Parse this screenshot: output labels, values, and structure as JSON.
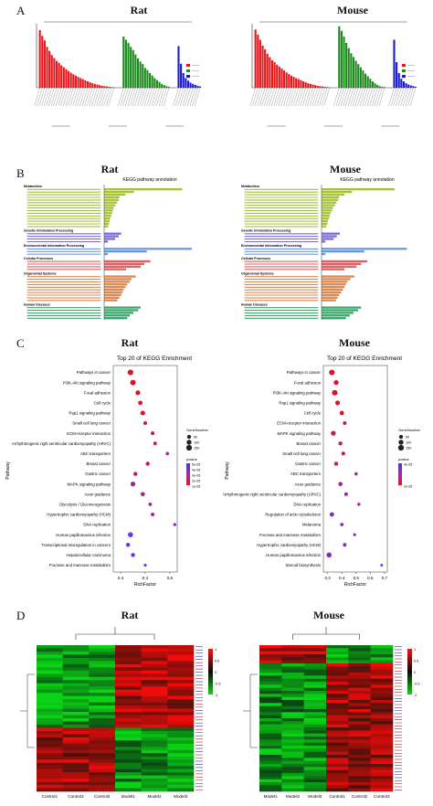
{
  "panels": {
    "A": {
      "letter": "A",
      "left_title": "Rat",
      "right_title": "Mouse"
    },
    "B": {
      "letter": "B",
      "left_title": "Rat",
      "right_title": "Mouse"
    },
    "C": {
      "letter": "C",
      "left_title": "Rat",
      "right_title": "Mouse"
    },
    "D": {
      "letter": "D",
      "left_title": "Rat",
      "right_title": "Mouse"
    }
  },
  "chart_data": [
    {
      "type": "bar",
      "id": "go-rat",
      "title": "",
      "series": [
        {
          "name": "",
          "color": "#e8161b",
          "values": [
            180,
            162,
            148,
            128,
            115,
            102,
            93,
            84,
            78,
            70,
            64,
            58,
            52,
            47,
            42,
            38,
            34,
            30,
            27,
            23,
            20,
            17,
            14,
            12,
            10,
            8,
            6,
            5,
            4,
            3,
            2,
            1
          ]
        },
        {
          "name": "",
          "color": "#1d8a1d",
          "values": [
            160,
            150,
            140,
            128,
            118,
            104,
            92,
            82,
            74,
            62,
            55,
            46,
            38,
            30,
            24,
            18,
            12,
            8,
            5,
            3
          ]
        },
        {
          "name": "",
          "color": "#1a1ad6",
          "values": [
            130,
            75,
            46,
            30,
            22,
            16,
            12,
            9,
            6,
            4
          ]
        }
      ]
    },
    {
      "type": "bar",
      "id": "go-mouse",
      "title": "",
      "series": [
        {
          "name": "",
          "color": "#e8161b",
          "values": [
            182,
            166,
            150,
            132,
            120,
            106,
            96,
            86,
            80,
            72,
            66,
            60,
            54,
            48,
            43,
            38,
            34,
            30,
            27,
            24,
            20,
            17,
            14,
            12,
            10,
            8,
            6,
            5,
            4,
            3,
            2,
            1
          ]
        },
        {
          "name": "",
          "color": "#1d8a1d",
          "values": [
            192,
            178,
            160,
            140,
            124,
            108,
            96,
            84,
            74,
            64,
            54,
            44,
            36,
            28,
            20,
            14,
            9,
            5,
            3,
            2
          ]
        },
        {
          "name": "",
          "color": "#1a1ad6",
          "values": [
            150,
            80,
            46,
            28,
            20,
            14,
            10,
            7,
            5,
            3
          ]
        }
      ]
    },
    {
      "type": "bar",
      "id": "kegg-rat",
      "title": "KEGG pathway annotation",
      "xlabel": "Number of Genes",
      "xticks": [
        "0",
        "100",
        "200",
        "300",
        "400",
        "500",
        "600"
      ],
      "groups": [
        {
          "name": "Metabolism",
          "color": "#a6c43a",
          "values": [
            640,
            245,
            175,
            125,
            120,
            105,
            92,
            78,
            72,
            65,
            58,
            50,
            45,
            40,
            32
          ]
        },
        {
          "name": "Genetic Information Processing",
          "color": "#7d6ad6",
          "values": [
            140,
            120,
            90,
            30
          ]
        },
        {
          "name": "Environmental Information Processing",
          "color": "#6b9ae0",
          "values": [
            720,
            350,
            30
          ]
        },
        {
          "name": "Cellular Processes",
          "color": "#e06060",
          "values": [
            380,
            330,
            300,
            180
          ]
        },
        {
          "name": "Organismal Systems",
          "color": "#d98a55",
          "values": [
            260,
            225,
            210,
            190,
            175,
            160,
            150,
            140,
            125,
            110
          ]
        },
        {
          "name": "Human Diseases",
          "color": "#3aa86b",
          "values": [
            300,
            280,
            240,
            210,
            190,
            150,
            130,
            110
          ]
        }
      ]
    },
    {
      "type": "bar",
      "id": "kegg-mouse",
      "title": "KEGG pathway annotation",
      "xlabel": "Number of Genes",
      "groups": [
        {
          "name": "Metabolism",
          "color": "#a6c43a",
          "values": [
            480,
            200,
            150,
            115,
            110,
            98,
            88,
            75,
            68,
            60,
            54,
            48,
            42,
            38,
            30
          ]
        },
        {
          "name": "Genetic Information Processing",
          "color": "#7d6ad6",
          "values": [
            120,
            100,
            80,
            25
          ]
        },
        {
          "name": "Environmental Information Processing",
          "color": "#6b9ae0",
          "values": [
            560,
            280,
            25
          ]
        },
        {
          "name": "Cellular Processes",
          "color": "#e06060",
          "values": [
            300,
            260,
            230,
            150
          ]
        },
        {
          "name": "Organismal Systems",
          "color": "#d98a55",
          "values": [
            215,
            190,
            170,
            160,
            150,
            140,
            130,
            115,
            105,
            95
          ]
        },
        {
          "name": "Human Diseases",
          "color": "#3aa86b",
          "values": [
            260,
            240,
            210,
            185,
            160,
            130,
            110,
            95
          ]
        }
      ]
    },
    {
      "type": "scatter",
      "id": "enrich-rat",
      "title": "Top 20 of KEGG Enrichment",
      "xlabel": "RichFactor",
      "ylabel": "Pathway",
      "xlim": [
        0.27,
        0.53
      ],
      "xticks": [
        "0.3",
        "0.4",
        "0.5"
      ],
      "legend_gene_title": "GeneNumber",
      "legend_gene_values": [
        "50",
        "100",
        "150"
      ],
      "legend_p_title": "pvalue",
      "legend_p_values": [
        "5e-05",
        "4e-05",
        "3e-05",
        "2e-05",
        "1e-05"
      ],
      "categories": [
        "Pathways in cancer",
        "PI3K-Akt signaling pathway",
        "Focal adhesion",
        "Cell cycle",
        "Rap1 signaling pathway",
        "Small cell lung cancer",
        "ECM-receptor interaction",
        "Arrhythmogenic right ventricular cardiomyopathy (ARVC)",
        "ABC transporters",
        "Breast cancer",
        "Gastric cancer",
        "MAPK signaling pathway",
        "Axon guidance",
        "Glycolysis / Gluconeogenesis",
        "Hypertrophic cardiomyopathy (HCM)",
        "DNA replication",
        "Human papillomavirus infection",
        "Transcriptional misregulation in cancers",
        "Hepatocellular carcinoma",
        "Fructose and mannose metabolism"
      ],
      "x": [
        0.34,
        0.35,
        0.37,
        0.38,
        0.39,
        0.4,
        0.43,
        0.44,
        0.49,
        0.41,
        0.36,
        0.35,
        0.39,
        0.42,
        0.43,
        0.52,
        0.34,
        0.33,
        0.35,
        0.4
      ],
      "size": [
        150,
        140,
        90,
        70,
        85,
        40,
        40,
        35,
        25,
        50,
        55,
        95,
        60,
        30,
        35,
        20,
        110,
        55,
        55,
        15
      ],
      "p": [
        1e-05,
        1e-05,
        1e-05,
        1e-05,
        1e-05,
        2e-05,
        2e-05,
        2e-05,
        3e-05,
        2e-05,
        2e-05,
        3e-05,
        3e-05,
        3e-05,
        3e-05,
        4e-05,
        5e-05,
        5e-05,
        5e-05,
        5e-05
      ]
    },
    {
      "type": "scatter",
      "id": "enrich-mouse",
      "title": "Top 20 of KEGG Enrichment",
      "xlabel": "RichFactor",
      "ylabel": "Pathway",
      "xlim": [
        0.27,
        0.72
      ],
      "xticks": [
        "0.3",
        "0.4",
        "0.5",
        "0.6",
        "0.7"
      ],
      "legend_gene_title": "GeneNumber",
      "legend_gene_values": [
        "50",
        "100",
        "150"
      ],
      "legend_p_title": "pvalue",
      "legend_p_values": [
        "4e-05",
        "2e-05"
      ],
      "categories": [
        "Pathways in cancer",
        "Focal adhesion",
        "PI3K-Akt signaling pathway",
        "Rap1 signaling pathway",
        "Cell cycle",
        "ECM-receptor interaction",
        "MAPK signaling pathway",
        "Breast cancer",
        "Small cell lung cancer",
        "Gastric cancer",
        "ABC transporters",
        "Axon guidance",
        "Arrhythmogenic right ventricular cardiomyopathy (ARVC)",
        "DNA replication",
        "Regulation of actin cytoskeleton",
        "Melanoma",
        "Fructose and mannose metabolism",
        "Hypertrophic cardiomyopathy (HCM)",
        "Human papillomavirus infection",
        "Steroid biosynthesis"
      ],
      "x": [
        0.33,
        0.36,
        0.35,
        0.37,
        0.4,
        0.42,
        0.34,
        0.39,
        0.41,
        0.36,
        0.5,
        0.39,
        0.43,
        0.52,
        0.33,
        0.4,
        0.49,
        0.42,
        0.31,
        0.68
      ],
      "size": [
        150,
        95,
        140,
        85,
        70,
        40,
        95,
        50,
        40,
        55,
        25,
        60,
        35,
        20,
        70,
        30,
        15,
        35,
        110,
        10
      ],
      "p": [
        1e-05,
        1e-05,
        1e-05,
        1e-05,
        1e-05,
        2e-05,
        2e-05,
        2e-05,
        2e-05,
        2e-05,
        3e-05,
        3e-05,
        3e-05,
        3e-05,
        4e-05,
        4e-05,
        4e-05,
        4e-05,
        4e-05,
        5e-05
      ]
    },
    {
      "type": "heatmap",
      "id": "heat-rat",
      "title": "",
      "columns": [
        "Control1",
        "Control2",
        "Control3",
        "Model1",
        "Model2",
        "Model3"
      ],
      "rows": 46,
      "scale_ticks": [
        "1",
        "0.5",
        "0",
        "-0.5",
        "-1"
      ]
    },
    {
      "type": "heatmap",
      "id": "heat-mouse",
      "title": "",
      "columns": [
        "Model1",
        "Model2",
        "Model3",
        "Control1",
        "Control2",
        "Control3"
      ],
      "rows": 48,
      "scale_ticks": [
        "1",
        "0.5",
        "0",
        "-0.5",
        "-1"
      ]
    }
  ]
}
